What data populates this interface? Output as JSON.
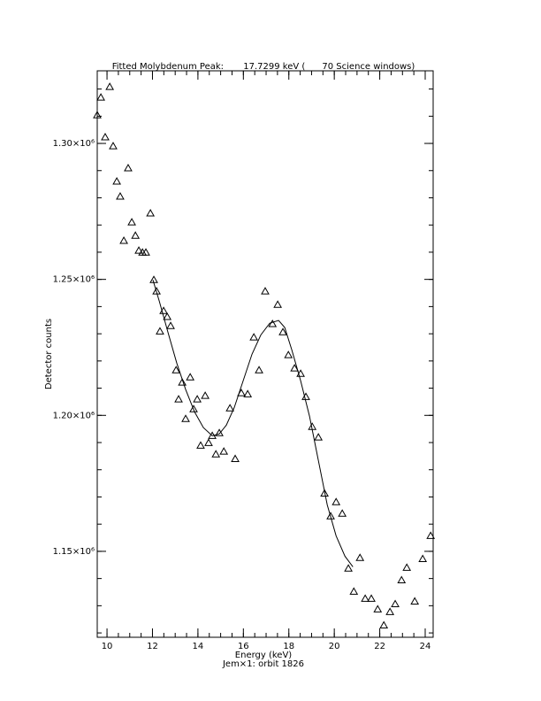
{
  "chart_data": {
    "type": "scatter",
    "title": "Fitted Molybdenum Peak:       17.7299 keV (      70 Science windows)",
    "xlabel": "Energy (keV)",
    "ylabel": "Detector counts",
    "footer": "Jem×1: orbit 1826",
    "xlim": [
      9.57,
      24.35
    ],
    "ylim": [
      1118400,
      1326700
    ],
    "xticks": [
      10,
      12,
      14,
      16,
      18,
      20,
      22,
      24
    ],
    "yticks": [
      {
        "value": 1150000,
        "label": "1.15×10⁶"
      },
      {
        "value": 1200000,
        "label": "1.20×10⁶"
      },
      {
        "value": 1250000,
        "label": "1.25×10⁶"
      },
      {
        "value": 1300000,
        "label": "1.30×10⁶"
      }
    ],
    "x_minor_ticks": 4,
    "y_minor_ticks": 5,
    "color": "#000000",
    "series": [
      {
        "marker": "triangle",
        "x": [
          9.57,
          9.73,
          9.92,
          10.12,
          10.27,
          10.43,
          10.58,
          10.74,
          10.93,
          11.09,
          11.25,
          11.4,
          11.56,
          11.71,
          11.91,
          12.06,
          12.18,
          12.33,
          12.49,
          12.65,
          12.8,
          13.04,
          13.15,
          13.31,
          13.46,
          13.66,
          13.81,
          13.97,
          14.12,
          14.32,
          14.47,
          14.63,
          14.79,
          14.94,
          15.14,
          15.41,
          15.64,
          15.91,
          16.19,
          16.46,
          16.69,
          16.96,
          17.28,
          17.51,
          17.74,
          17.98,
          18.25,
          18.52,
          18.75,
          19.03,
          19.3,
          19.57,
          19.84,
          20.08,
          20.35,
          20.62,
          20.86,
          21.13,
          21.36,
          21.63,
          21.91,
          22.18,
          22.45,
          22.68,
          22.96,
          23.19,
          23.54,
          23.89,
          24.24
        ],
        "values": [
          1310400,
          1316900,
          1302300,
          1320800,
          1299000,
          1286000,
          1280500,
          1264200,
          1290900,
          1271000,
          1266100,
          1260600,
          1259900,
          1259900,
          1274300,
          1249800,
          1245600,
          1230900,
          1238400,
          1236200,
          1232900,
          1216600,
          1205900,
          1212100,
          1198700,
          1214000,
          1202300,
          1205900,
          1188900,
          1207200,
          1189900,
          1192500,
          1185700,
          1193500,
          1186700,
          1202600,
          1184000,
          1208200,
          1207800,
          1228700,
          1216600,
          1245600,
          1233600,
          1240700,
          1230600,
          1222200,
          1217300,
          1215300,
          1206800,
          1195800,
          1191900,
          1171300,
          1162900,
          1168100,
          1163900,
          1143700,
          1135200,
          1147600,
          1132600,
          1132600,
          1128700,
          1122800,
          1127700,
          1130600,
          1139400,
          1144000,
          1131600,
          1147200,
          1155700
        ]
      },
      {
        "marker": "line",
        "x": [
          12.02,
          12.3,
          12.68,
          13.07,
          13.46,
          13.85,
          14.24,
          14.63,
          14.94,
          15.25,
          15.6,
          15.99,
          16.38,
          16.77,
          17.16,
          17.55,
          17.82,
          18.13,
          18.52,
          18.91,
          19.3,
          19.69,
          20.08,
          20.47,
          20.82
        ],
        "values": [
          1249800,
          1242000,
          1230600,
          1219200,
          1209500,
          1201300,
          1195500,
          1192500,
          1193200,
          1196400,
          1202900,
          1212700,
          1222500,
          1229600,
          1233900,
          1234900,
          1232300,
          1224100,
          1212700,
          1199700,
          1183400,
          1167100,
          1155700,
          1148200,
          1144300
        ]
      }
    ]
  }
}
